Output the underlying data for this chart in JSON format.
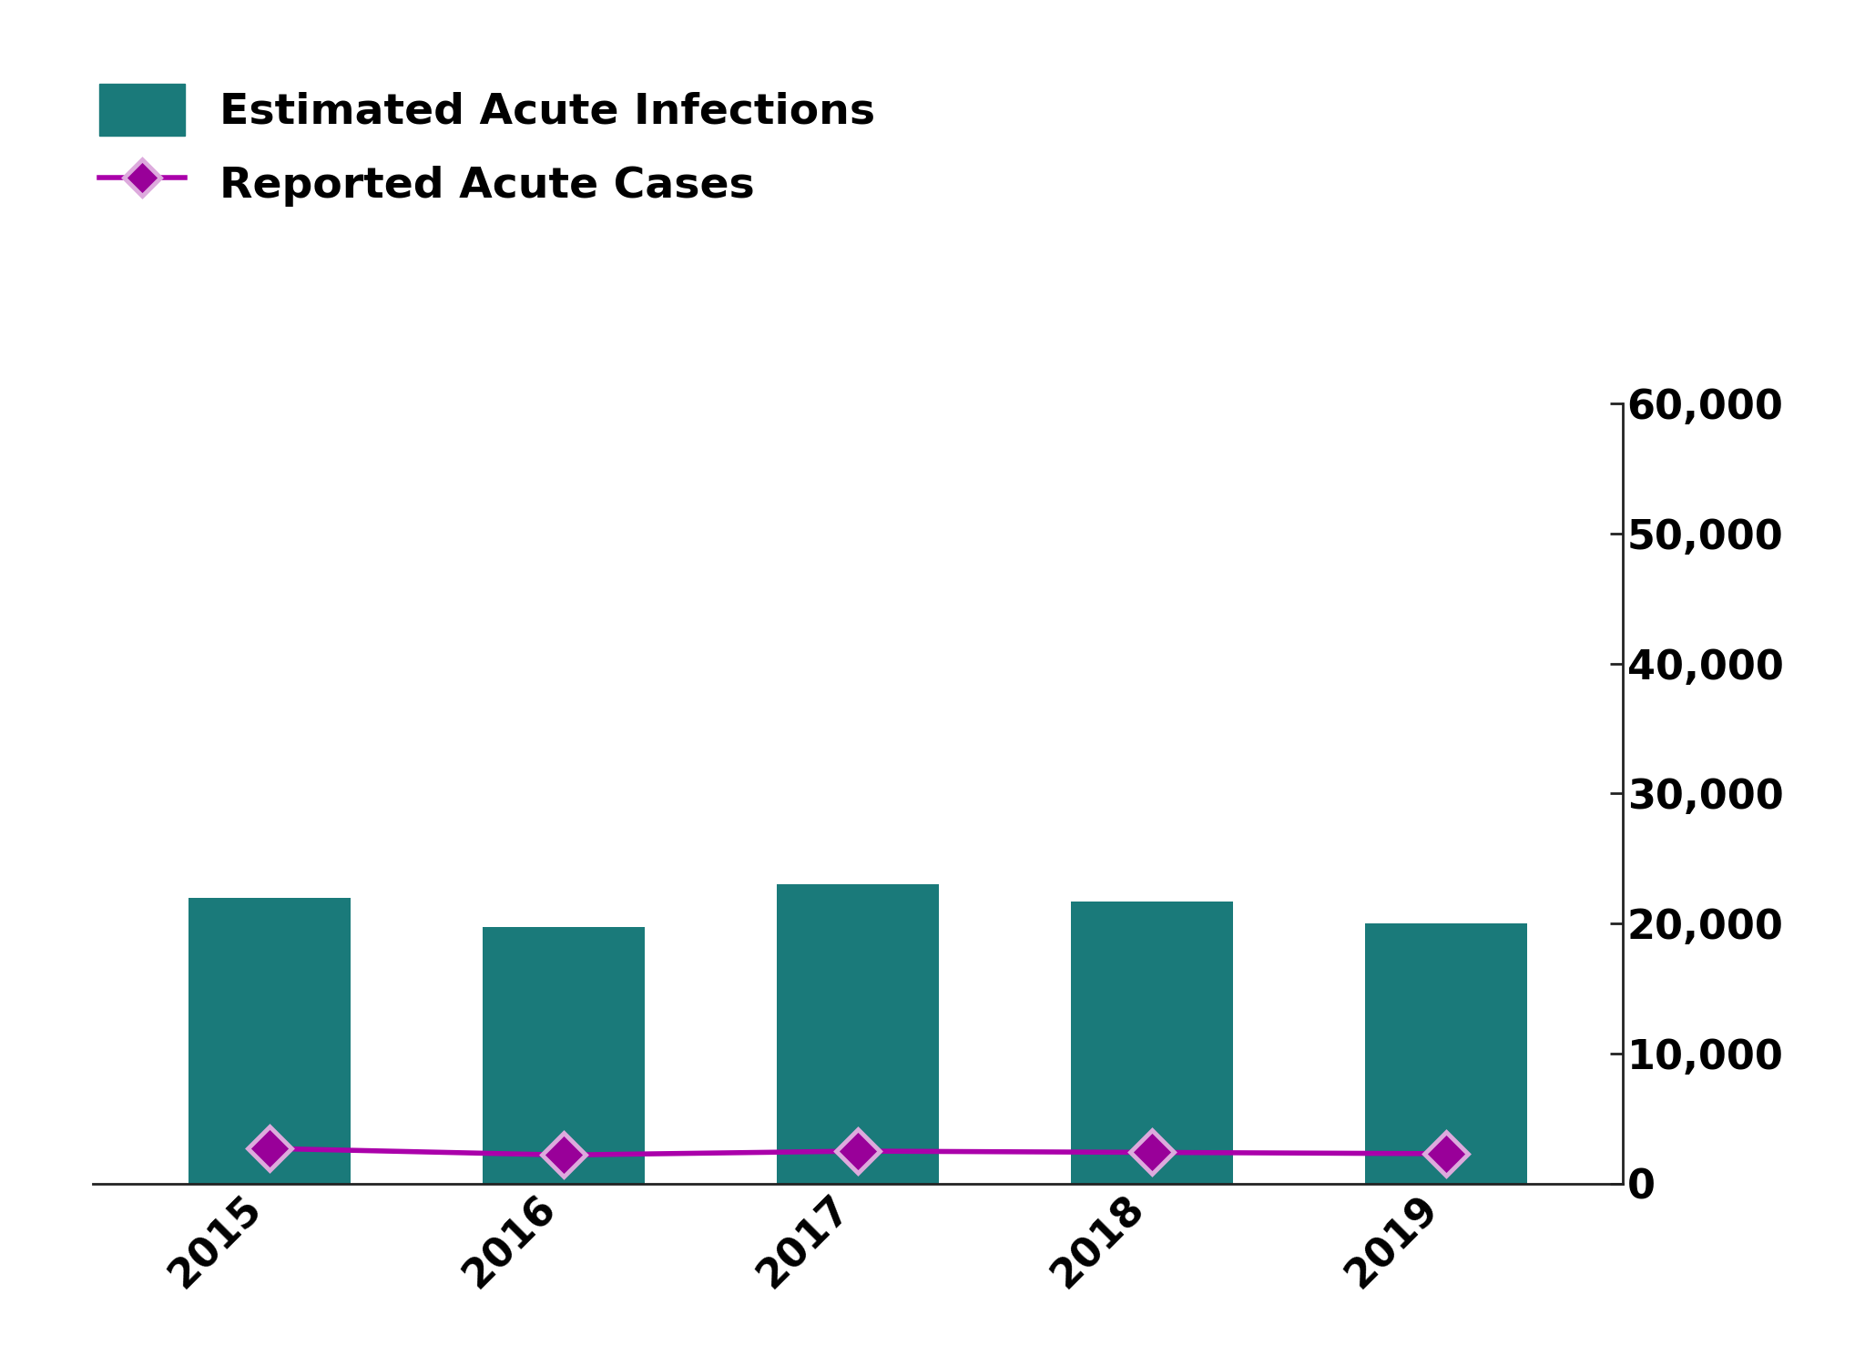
{
  "years": [
    2015,
    2016,
    2017,
    2018,
    2019
  ],
  "bar_values": [
    22000,
    19700,
    23000,
    21700,
    20000
  ],
  "line_values": [
    2700,
    2200,
    2500,
    2400,
    2300
  ],
  "bar_color": "#1a7a7a",
  "line_color": "#aa00aa",
  "line_marker_color": "#990099",
  "line_marker_edge_color": "#ddaadd",
  "legend_bar_label": "Estimated Acute Infections",
  "legend_line_label": "Reported Acute Cases",
  "ylim": [
    0,
    60000
  ],
  "yticks": [
    0,
    10000,
    20000,
    30000,
    40000,
    50000,
    60000
  ],
  "ytick_labels": [
    "0",
    "10,000",
    "20,000",
    "30,000",
    "40,000",
    "50,000",
    "60,000"
  ],
  "bar_width": 0.55,
  "background_color": "#ffffff",
  "legend_fontsize": 34,
  "tick_fontsize": 32,
  "line_width": 4,
  "marker_size": 24,
  "marker_style": "D"
}
